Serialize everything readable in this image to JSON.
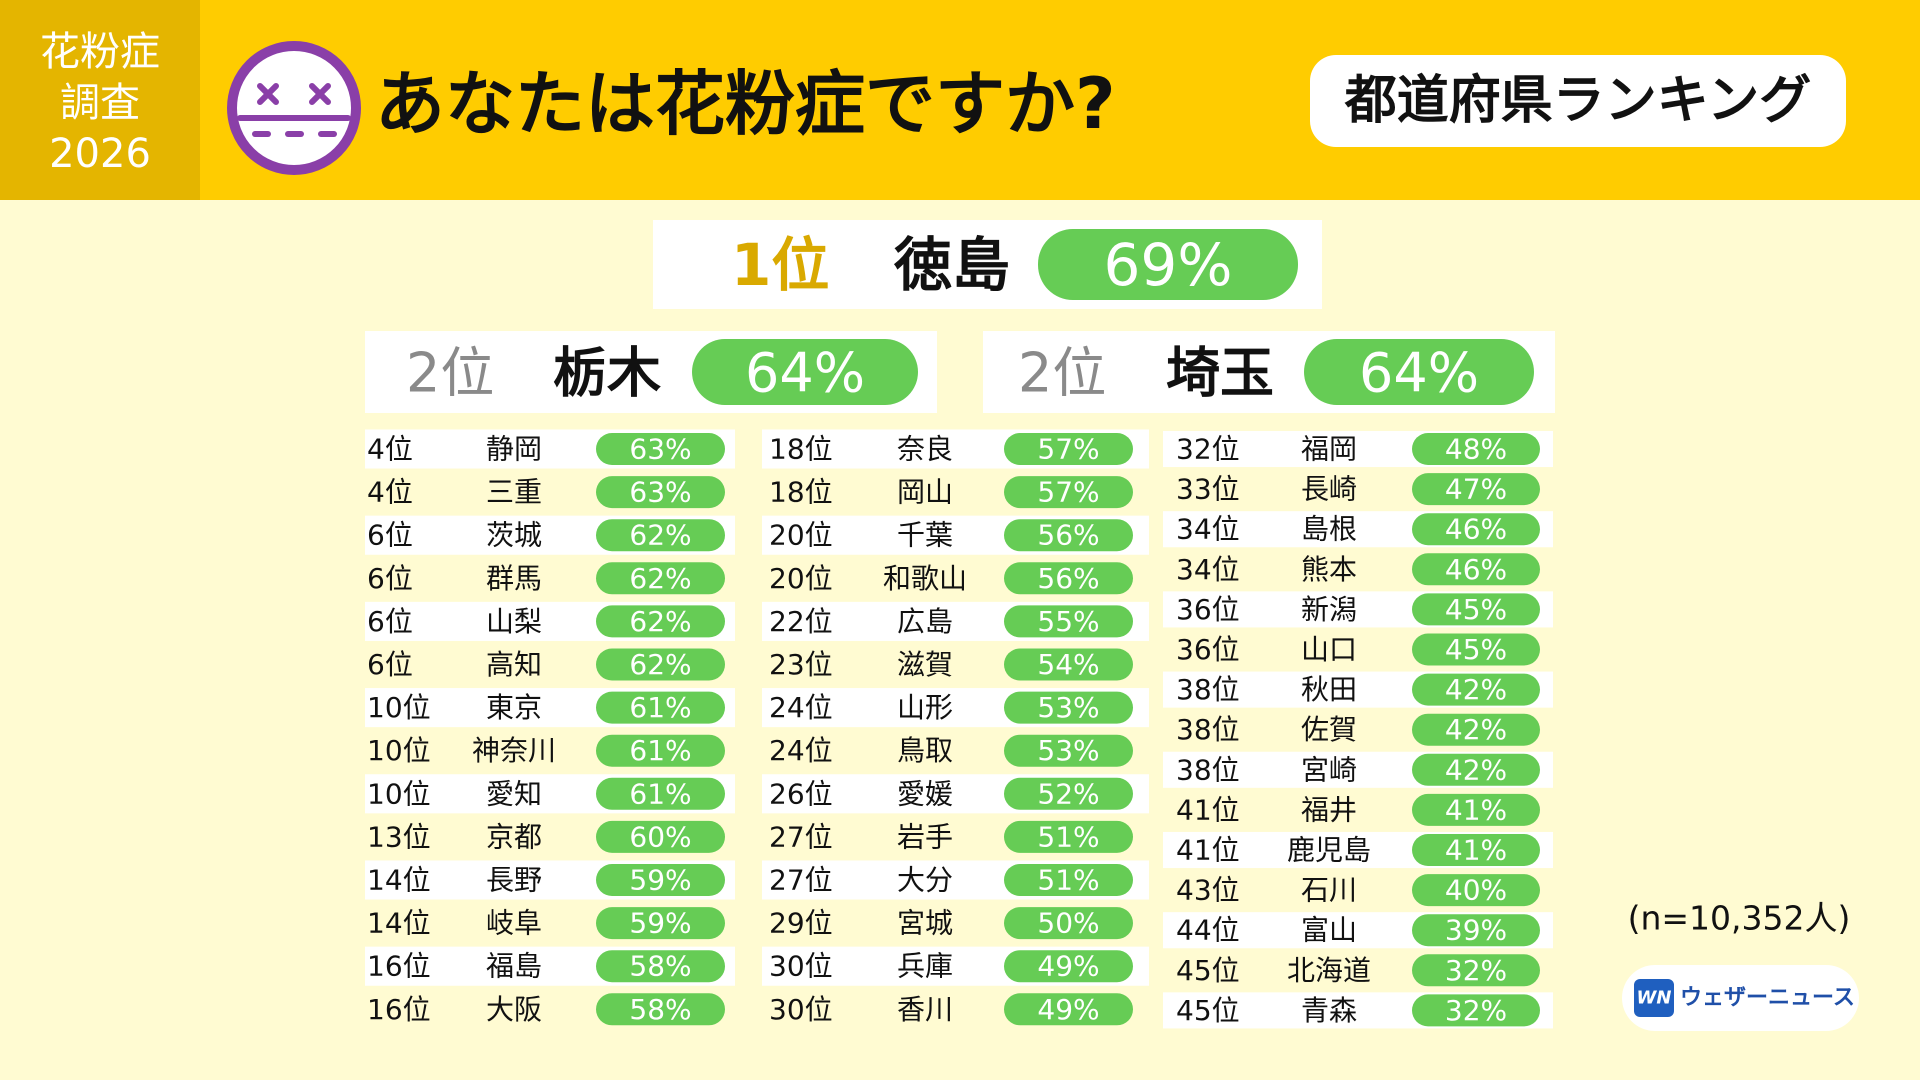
{
  "badge": [
    "花粉症",
    "調査",
    "2026"
  ],
  "title": "あなたは花粉症ですか?",
  "subtitle": "都道府県ランキング",
  "top": [
    {
      "rank": "1位",
      "name": "徳島",
      "pct": "69%"
    },
    {
      "rank": "2位",
      "name": "栃木",
      "pct": "64%"
    },
    {
      "rank": "2位",
      "name": "埼玉",
      "pct": "64%"
    }
  ],
  "columns": [
    [
      [
        "4位",
        "静岡",
        "63%"
      ],
      [
        "4位",
        "三重",
        "63%"
      ],
      [
        "6位",
        "茨城",
        "62%"
      ],
      [
        "6位",
        "群馬",
        "62%"
      ],
      [
        "6位",
        "山梨",
        "62%"
      ],
      [
        "6位",
        "高知",
        "62%"
      ],
      [
        "10位",
        "東京",
        "61%"
      ],
      [
        "10位",
        "神奈川",
        "61%"
      ],
      [
        "10位",
        "愛知",
        "61%"
      ],
      [
        "13位",
        "京都",
        "60%"
      ],
      [
        "14位",
        "長野",
        "59%"
      ],
      [
        "14位",
        "岐阜",
        "59%"
      ],
      [
        "16位",
        "福島",
        "58%"
      ],
      [
        "16位",
        "大阪",
        "58%"
      ]
    ],
    [
      [
        "18位",
        "奈良",
        "57%"
      ],
      [
        "18位",
        "岡山",
        "57%"
      ],
      [
        "20位",
        "千葉",
        "56%"
      ],
      [
        "20位",
        "和歌山",
        "56%"
      ],
      [
        "22位",
        "広島",
        "55%"
      ],
      [
        "23位",
        "滋賀",
        "54%"
      ],
      [
        "24位",
        "山形",
        "53%"
      ],
      [
        "24位",
        "鳥取",
        "53%"
      ],
      [
        "26位",
        "愛媛",
        "52%"
      ],
      [
        "27位",
        "岩手",
        "51%"
      ],
      [
        "27位",
        "大分",
        "51%"
      ],
      [
        "29位",
        "宮城",
        "50%"
      ],
      [
        "30位",
        "兵庫",
        "49%"
      ],
      [
        "30位",
        "香川",
        "49%"
      ]
    ],
    [
      [
        "32位",
        "福岡",
        "48%"
      ],
      [
        "33位",
        "長崎",
        "47%"
      ],
      [
        "34位",
        "島根",
        "46%"
      ],
      [
        "34位",
        "熊本",
        "46%"
      ],
      [
        "36位",
        "新潟",
        "45%"
      ],
      [
        "36位",
        "山口",
        "45%"
      ],
      [
        "38位",
        "秋田",
        "42%"
      ],
      [
        "38位",
        "佐賀",
        "42%"
      ],
      [
        "38位",
        "宮崎",
        "42%"
      ],
      [
        "41位",
        "福井",
        "41%"
      ],
      [
        "41位",
        "鹿児島",
        "41%"
      ],
      [
        "43位",
        "石川",
        "40%"
      ],
      [
        "44位",
        "富山",
        "39%"
      ],
      [
        "45位",
        "北海道",
        "32%"
      ],
      [
        "45位",
        "青森",
        "32%"
      ]
    ]
  ],
  "note": "(n=10,352人)",
  "logo": {
    "mark": "WN",
    "text": "ウェザーニュース"
  }
}
